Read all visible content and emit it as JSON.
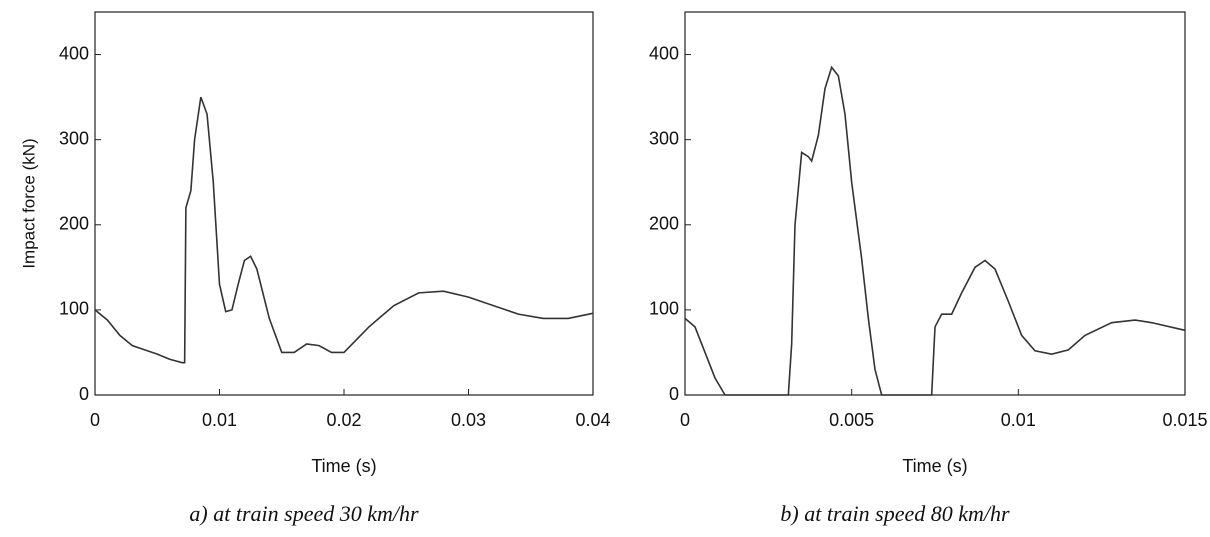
{
  "chart_data": [
    {
      "type": "line",
      "xlabel": "Time (s)",
      "ylabel": "Impact force (kN)",
      "caption": "a) at train speed 30 km/hr",
      "xlim": [
        0,
        0.04
      ],
      "ylim": [
        0,
        450
      ],
      "xticks": [
        0,
        0.01,
        0.02,
        0.03,
        0.04
      ],
      "yticks": [
        0,
        100,
        200,
        300,
        400
      ],
      "x": [
        0,
        0.001,
        0.002,
        0.003,
        0.004,
        0.005,
        0.006,
        0.007,
        0.0072,
        0.0073,
        0.0077,
        0.008,
        0.0085,
        0.009,
        0.0095,
        0.01,
        0.0105,
        0.011,
        0.0115,
        0.012,
        0.0125,
        0.013,
        0.014,
        0.015,
        0.016,
        0.017,
        0.018,
        0.019,
        0.02,
        0.022,
        0.024,
        0.026,
        0.028,
        0.03,
        0.032,
        0.034,
        0.036,
        0.038,
        0.04
      ],
      "series": [
        {
          "color": "#333333",
          "values": [
            100,
            88,
            70,
            58,
            53,
            48,
            42,
            38,
            38,
            220,
            240,
            300,
            350,
            330,
            250,
            130,
            98,
            100,
            130,
            158,
            163,
            148,
            90,
            50,
            50,
            60,
            58,
            50,
            50,
            80,
            105,
            120,
            122,
            115,
            105,
            95,
            90,
            90,
            96
          ]
        }
      ]
    },
    {
      "type": "line",
      "xlabel": "Time (s)",
      "caption": "b) at train speed 80 km/hr",
      "xlim": [
        0,
        0.015
      ],
      "ylim": [
        0,
        450
      ],
      "xticks": [
        0,
        0.005,
        0.01,
        0.015
      ],
      "yticks": [
        0,
        100,
        200,
        300,
        400
      ],
      "x": [
        0,
        0.0003,
        0.0006,
        0.0009,
        0.0012,
        0.002,
        0.0031,
        0.0032,
        0.0033,
        0.0035,
        0.0037,
        0.0038,
        0.004,
        0.0042,
        0.0044,
        0.0046,
        0.0048,
        0.005,
        0.0053,
        0.0055,
        0.0057,
        0.0059,
        0.007,
        0.0074,
        0.0075,
        0.0077,
        0.008,
        0.0083,
        0.0087,
        0.009,
        0.0093,
        0.0097,
        0.0101,
        0.0105,
        0.011,
        0.0115,
        0.012,
        0.0128,
        0.0135,
        0.014,
        0.015
      ],
      "series": [
        {
          "color": "#333333",
          "values": [
            90,
            80,
            50,
            20,
            0,
            0,
            0,
            60,
            200,
            285,
            280,
            275,
            305,
            360,
            385,
            375,
            330,
            250,
            160,
            90,
            30,
            0,
            0,
            0,
            80,
            95,
            95,
            120,
            150,
            158,
            148,
            110,
            70,
            52,
            48,
            53,
            70,
            85,
            88,
            85,
            76
          ]
        }
      ]
    }
  ]
}
